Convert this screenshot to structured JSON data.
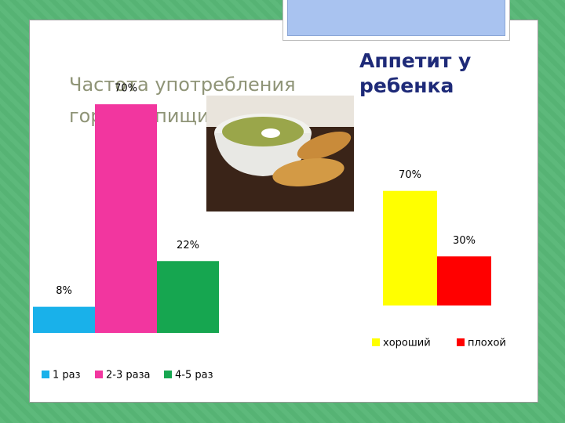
{
  "chart_data": [
    {
      "type": "bar",
      "title": "Частота употребления горячей пищи за день",
      "categories": [
        null
      ],
      "series": [
        {
          "name": "1 раз",
          "color": "#19b1ea",
          "values": [
            8
          ],
          "value_labels": [
            "8%"
          ]
        },
        {
          "name": "2-3 раза",
          "color": "#f2369f",
          "values": [
            70
          ],
          "value_labels": [
            "70%"
          ]
        },
        {
          "name": "4-5 раз",
          "color": "#16a650",
          "values": [
            22
          ],
          "value_labels": [
            "22%"
          ]
        }
      ],
      "legend": "bottom"
    },
    {
      "type": "bar",
      "title": "Аппетит у ребенка",
      "categories": [
        null
      ],
      "series": [
        {
          "name": "хороший",
          "color": "#ffff00",
          "values": [
            70
          ],
          "value_labels": [
            "70%"
          ]
        },
        {
          "name": "плохой",
          "color": "#ff0000",
          "values": [
            30
          ],
          "value_labels": [
            "30%"
          ]
        }
      ],
      "legend": "bottom"
    }
  ]
}
